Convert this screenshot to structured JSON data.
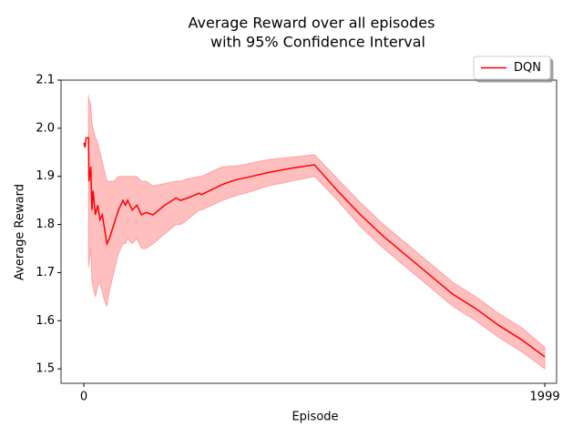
{
  "chart_data": {
    "type": "line",
    "title": [
      "Average Reward over all episodes",
      "with 95% Confidence Interval"
    ],
    "xlabel": "Episode",
    "ylabel": "Average Reward",
    "x": [
      0,
      5,
      10,
      20,
      22,
      30,
      35,
      40,
      50,
      60,
      70,
      80,
      90,
      100,
      110,
      130,
      150,
      170,
      180,
      190,
      210,
      230,
      250,
      270,
      300,
      350,
      400,
      420,
      450,
      500,
      510,
      600,
      660,
      700,
      800,
      900,
      1000,
      1100,
      1200,
      1300,
      1400,
      1500,
      1600,
      1700,
      1800,
      1900,
      1999
    ],
    "series": [
      {
        "name": "DQN",
        "color": "#ff0000",
        "values": [
          1.97,
          1.96,
          1.98,
          1.98,
          1.89,
          1.92,
          1.83,
          1.87,
          1.82,
          1.84,
          1.81,
          1.82,
          1.79,
          1.76,
          1.77,
          1.8,
          1.83,
          1.85,
          1.84,
          1.85,
          1.83,
          1.84,
          1.82,
          1.825,
          1.82,
          1.84,
          1.855,
          1.85,
          1.855,
          1.865,
          1.862,
          1.883,
          1.893,
          1.897,
          1.908,
          1.917,
          1.924,
          1.87,
          1.82,
          1.775,
          1.735,
          1.695,
          1.655,
          1.625,
          1.59,
          1.56,
          1.525
        ]
      }
    ],
    "band": {
      "color": "#ff0000",
      "upper": [
        null,
        null,
        null,
        2.07,
        2.06,
        2.05,
        2.01,
        2.0,
        1.98,
        1.97,
        1.95,
        1.93,
        1.91,
        1.89,
        1.89,
        1.89,
        1.9,
        1.9,
        1.9,
        1.9,
        1.9,
        1.9,
        1.89,
        1.89,
        1.88,
        1.885,
        1.89,
        1.89,
        1.895,
        1.9,
        1.9,
        1.92,
        1.922,
        1.925,
        1.935,
        1.94,
        1.945,
        1.895,
        1.845,
        1.8,
        1.76,
        1.72,
        1.68,
        1.65,
        1.615,
        1.585,
        1.545
      ],
      "lower": [
        null,
        null,
        null,
        1.71,
        1.72,
        1.75,
        1.68,
        1.67,
        1.65,
        1.67,
        1.68,
        1.66,
        1.64,
        1.63,
        1.66,
        1.7,
        1.74,
        1.76,
        1.76,
        1.77,
        1.76,
        1.77,
        1.75,
        1.75,
        1.76,
        1.78,
        1.8,
        1.8,
        1.81,
        1.83,
        1.83,
        1.85,
        1.86,
        1.865,
        1.88,
        1.89,
        1.9,
        1.85,
        1.795,
        1.75,
        1.71,
        1.67,
        1.63,
        1.6,
        1.565,
        1.535,
        1.5
      ]
    },
    "xlim": [
      -99,
      2050
    ],
    "xticks": [
      0,
      1999
    ],
    "ylim": [
      1.47,
      2.1
    ],
    "yticks": [
      1.5,
      1.6,
      1.7,
      1.8,
      1.9,
      {
        "value": 2,
        "label": "2.0"
      },
      2.1
    ],
    "legend": "upper right"
  }
}
